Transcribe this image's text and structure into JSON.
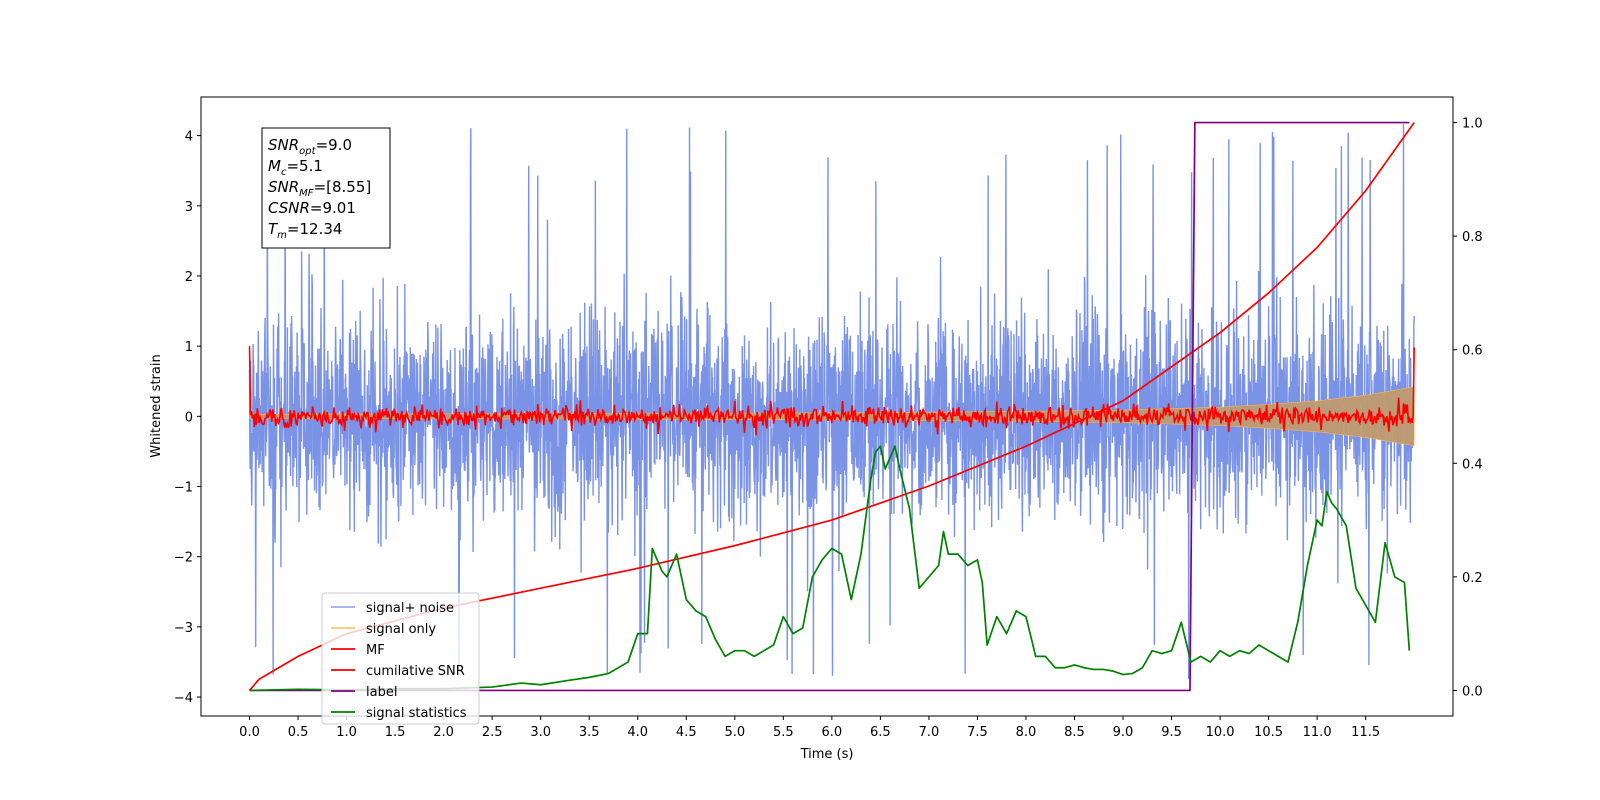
{
  "chart_data": {
    "type": "line",
    "xlabel": "Time (s)",
    "ylabel": "Whitened strain",
    "xlim": [
      -0.5,
      12.4
    ],
    "ylim": [
      -4.27,
      4.55
    ],
    "y2lim": [
      -0.045,
      1.045
    ],
    "x_ticks": [
      "0.0",
      "0.5",
      "1.0",
      "1.5",
      "2.0",
      "2.5",
      "3.0",
      "3.5",
      "4.0",
      "4.5",
      "5.0",
      "5.5",
      "6.0",
      "6.5",
      "7.0",
      "7.5",
      "8.0",
      "8.5",
      "9.0",
      "9.5",
      "10.0",
      "10.5",
      "11.0",
      "11.5"
    ],
    "y_ticks": [
      "4",
      "3",
      "2",
      "1",
      "0",
      "−1",
      "−2",
      "−3",
      "−4"
    ],
    "y2_ticks": [
      "1.0",
      "0.8",
      "0.6",
      "0.4",
      "0.2",
      "0.0"
    ],
    "grid": false,
    "legend_position": "lower-left",
    "annotation": {
      "lines": [
        {
          "base": "SNR",
          "sub": "opt",
          "rest": "=9.0"
        },
        {
          "base": "M",
          "sub": "c",
          "rest": "=5.1"
        },
        {
          "base": "SNR",
          "sub": "MF",
          "rest": "=[8.55]"
        },
        {
          "base": "CSNR",
          "sub": "",
          "rest": "=9.01"
        },
        {
          "base": "T",
          "sub": "m",
          "rest": "=12.34"
        }
      ]
    },
    "series": [
      {
        "name": "signal+ noise",
        "color": "#7b93e6",
        "axis": "left",
        "kind": "noise_band",
        "t_range": [
          0.0,
          12.0
        ],
        "typical_range": [
          -2.2,
          2.2
        ],
        "peak_max": 4.18,
        "peak_min": -3.75
      },
      {
        "name": "signal only",
        "color": "#ffb347",
        "axis": "left",
        "kind": "chirp_envelope",
        "t": [
          0.0,
          2.0,
          4.0,
          6.0,
          8.0,
          9.0,
          10.0,
          10.5,
          11.0,
          11.5,
          12.0
        ],
        "amplitude": [
          0.03,
          0.035,
          0.04,
          0.05,
          0.07,
          0.09,
          0.13,
          0.17,
          0.22,
          0.3,
          0.42
        ]
      },
      {
        "name": "MF",
        "color": "#ff0000",
        "axis": "left",
        "kind": "noise_trace",
        "t_range": [
          0.0,
          12.0
        ],
        "start_value": 1.0,
        "end_value": 0.98,
        "typical_range": [
          -0.15,
          0.15
        ]
      },
      {
        "name": "cumilative SNR",
        "color": "#ff0000",
        "axis": "right",
        "x": [
          0.0,
          0.1,
          0.5,
          1.0,
          2.0,
          3.0,
          4.0,
          5.0,
          6.0,
          7.0,
          8.0,
          9.0,
          9.5,
          10.0,
          10.5,
          11.0,
          11.5,
          12.0
        ],
        "y": [
          0.0,
          0.02,
          0.06,
          0.1,
          0.145,
          0.18,
          0.215,
          0.255,
          0.3,
          0.36,
          0.43,
          0.51,
          0.57,
          0.63,
          0.7,
          0.78,
          0.88,
          1.0
        ]
      },
      {
        "name": "label",
        "color": "#800080",
        "axis": "right",
        "x": [
          0.0,
          9.69,
          9.74,
          11.95
        ],
        "y": [
          0.0,
          0.0,
          1.0,
          1.0
        ]
      },
      {
        "name": "signal statistics",
        "color": "#008000",
        "axis": "right",
        "x": [
          0.0,
          0.5,
          1.0,
          1.5,
          2.0,
          2.5,
          2.8,
          3.0,
          3.3,
          3.5,
          3.7,
          3.9,
          4.0,
          4.1,
          4.15,
          4.25,
          4.3,
          4.4,
          4.5,
          4.6,
          4.7,
          4.8,
          4.9,
          5.0,
          5.1,
          5.2,
          5.3,
          5.4,
          5.5,
          5.6,
          5.7,
          5.8,
          5.9,
          6.0,
          6.1,
          6.2,
          6.3,
          6.4,
          6.45,
          6.5,
          6.55,
          6.6,
          6.65,
          6.7,
          6.8,
          6.9,
          7.0,
          7.1,
          7.15,
          7.2,
          7.3,
          7.4,
          7.5,
          7.55,
          7.6,
          7.7,
          7.8,
          7.9,
          8.0,
          8.1,
          8.2,
          8.3,
          8.4,
          8.5,
          8.6,
          8.7,
          8.8,
          8.9,
          9.0,
          9.1,
          9.2,
          9.3,
          9.4,
          9.5,
          9.6,
          9.7,
          9.8,
          9.9,
          10.0,
          10.1,
          10.2,
          10.3,
          10.4,
          10.5,
          10.6,
          10.7,
          10.8,
          10.9,
          11.0,
          11.05,
          11.1,
          11.15,
          11.2,
          11.3,
          11.4,
          11.5,
          11.6,
          11.7,
          11.8,
          11.9,
          11.95
        ],
        "y": [
          0.0,
          0.002,
          0.001,
          0.003,
          0.003,
          0.006,
          0.013,
          0.01,
          0.018,
          0.023,
          0.03,
          0.05,
          0.1,
          0.1,
          0.25,
          0.21,
          0.2,
          0.24,
          0.16,
          0.14,
          0.13,
          0.09,
          0.06,
          0.07,
          0.07,
          0.06,
          0.07,
          0.08,
          0.13,
          0.1,
          0.11,
          0.2,
          0.23,
          0.25,
          0.24,
          0.16,
          0.24,
          0.37,
          0.42,
          0.43,
          0.39,
          0.41,
          0.43,
          0.39,
          0.32,
          0.18,
          0.2,
          0.22,
          0.28,
          0.24,
          0.24,
          0.22,
          0.23,
          0.19,
          0.08,
          0.13,
          0.1,
          0.14,
          0.13,
          0.06,
          0.06,
          0.04,
          0.04,
          0.045,
          0.04,
          0.037,
          0.037,
          0.034,
          0.028,
          0.03,
          0.04,
          0.07,
          0.065,
          0.07,
          0.12,
          0.05,
          0.06,
          0.05,
          0.07,
          0.06,
          0.07,
          0.065,
          0.08,
          0.07,
          0.06,
          0.05,
          0.12,
          0.22,
          0.3,
          0.29,
          0.35,
          0.33,
          0.32,
          0.29,
          0.18,
          0.15,
          0.12,
          0.26,
          0.2,
          0.19,
          0.07
        ]
      }
    ]
  }
}
